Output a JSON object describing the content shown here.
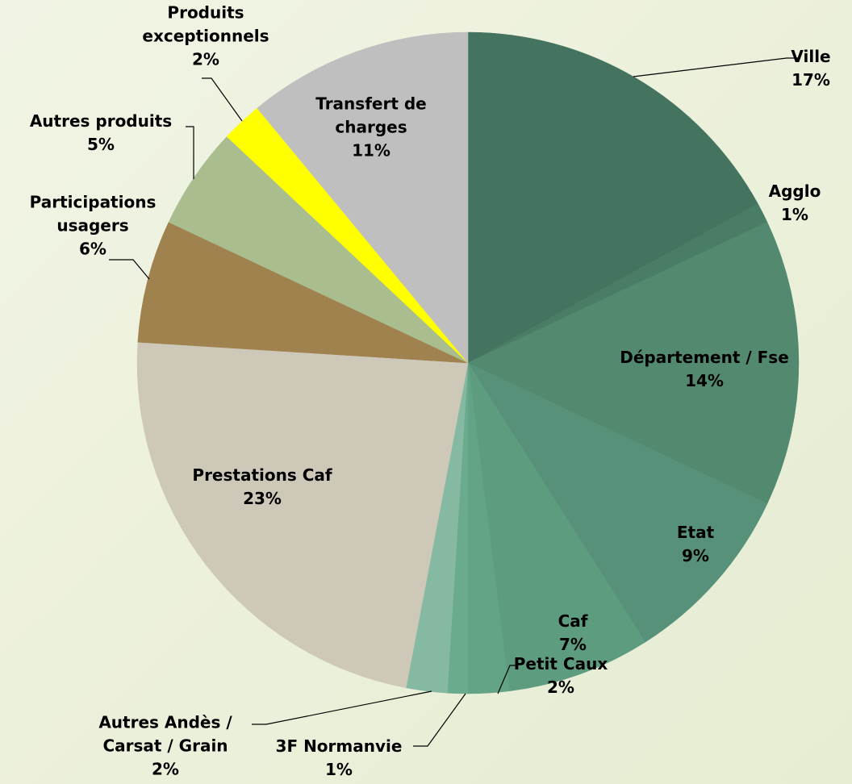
{
  "chart_data": {
    "type": "pie",
    "categories": [
      "Ville",
      "Agglo",
      "Département / Fse",
      "Etat",
      "Caf",
      "Petit Caux",
      "3F Normanvie",
      "Autres Andès / Carsat / Grain",
      "Prestations Caf",
      "Participations usagers",
      "Autres produits",
      "Produits exceptionnels",
      "Transfert de charges"
    ],
    "values": [
      17,
      1,
      14,
      9,
      7,
      2,
      1,
      2,
      23,
      6,
      5,
      2,
      11
    ],
    "value_labels": [
      "17%",
      "1%",
      "14%",
      "9%",
      "7%",
      "2%",
      "1%",
      "2%",
      "23%",
      "6%",
      "5%",
      "2%",
      "11%"
    ],
    "colors": [
      "#44735f",
      "#4a7d66",
      "#52896f",
      "#57917a",
      "#5e9c80",
      "#63a386",
      "#6aab8e",
      "#86b9a1",
      "#cec8b9",
      "#a0824f",
      "#a9bd8f",
      "#ffff00",
      "#bfbfbf"
    ]
  }
}
